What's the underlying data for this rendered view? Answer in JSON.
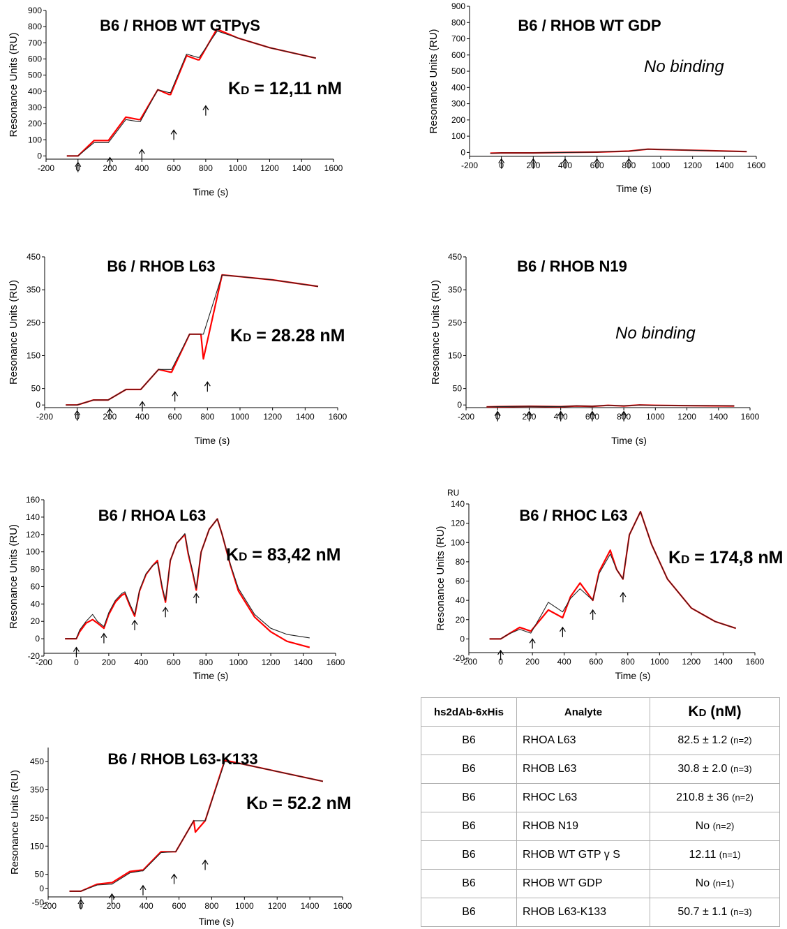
{
  "chart_data": [
    {
      "type": "line",
      "title": "B6 / RHOB WT GTPγS",
      "xlabel": "Time (s)",
      "ylabel": "Resonance  Units (RU)",
      "xlim": [
        -200,
        1600
      ],
      "ylim": [
        -50,
        900
      ],
      "xticks": [
        -200,
        0,
        200,
        400,
        600,
        800,
        1000,
        1200,
        1400,
        1600
      ],
      "yticks": [
        0,
        100,
        200,
        300,
        400,
        500,
        600,
        700,
        800,
        900
      ],
      "annotation": "KD = 12,11 nM",
      "injections": [
        0,
        200,
        400,
        600,
        800
      ],
      "arrow_values": [
        -40,
        -10,
        40,
        160,
        310
      ],
      "series": [
        {
          "color": "#ff0000",
          "x": [
            -70,
            -10,
            0,
            100,
            180,
            190,
            300,
            380,
            390,
            500,
            570,
            580,
            680,
            750,
            760,
            870,
            880,
            1000,
            1200,
            1490
          ],
          "y": [
            0,
            0,
            0,
            95,
            95,
            95,
            240,
            225,
            225,
            410,
            380,
            380,
            620,
            595,
            595,
            785,
            780,
            730,
            670,
            605
          ]
        },
        {
          "color": "#222222",
          "x": [
            -70,
            -10,
            0,
            100,
            180,
            190,
            300,
            380,
            390,
            500,
            570,
            580,
            680,
            750,
            760,
            870,
            880,
            1000,
            1200,
            1490
          ],
          "y": [
            0,
            0,
            0,
            82,
            82,
            82,
            225,
            212,
            212,
            410,
            392,
            392,
            630,
            610,
            610,
            770,
            770,
            730,
            670,
            605
          ]
        }
      ]
    },
    {
      "type": "line",
      "title": "B6 / RHOB WT  GDP",
      "xlabel": "Time (s)",
      "ylabel": "Resonance  Units (RU)",
      "xlim": [
        -200,
        1600
      ],
      "ylim": [
        -50,
        900
      ],
      "xticks": [
        -200,
        0,
        200,
        400,
        600,
        800,
        1000,
        1200,
        1400,
        1600
      ],
      "yticks": [
        0,
        100,
        200,
        300,
        400,
        500,
        600,
        700,
        800,
        900
      ],
      "annotation": "No binding",
      "injections": [
        0,
        200,
        400,
        600,
        800
      ],
      "arrow_values": [
        -40,
        -40,
        -40,
        -40,
        -40
      ],
      "series": [
        {
          "color": "#ff0000",
          "x": [
            -70,
            0,
            200,
            400,
            600,
            800,
            920,
            1000,
            1200,
            1540
          ],
          "y": [
            -5,
            -3,
            -3,
            0,
            2,
            8,
            20,
            18,
            13,
            5
          ]
        },
        {
          "color": "#222222",
          "x": [
            -70,
            0,
            200,
            400,
            600,
            800,
            920,
            1000,
            1200,
            1540
          ],
          "y": [
            -5,
            -3,
            -3,
            0,
            2,
            8,
            20,
            18,
            13,
            5
          ]
        }
      ]
    },
    {
      "type": "line",
      "title": "B6 / RHOB L63",
      "xlabel": "Time (s)",
      "ylabel": "Resonance  Units (RU)",
      "xlim": [
        -200,
        1600
      ],
      "ylim": [
        -25,
        450
      ],
      "xticks": [
        -200,
        0,
        200,
        400,
        600,
        800,
        1000,
        1200,
        1400,
        1600
      ],
      "yticks": [
        0,
        50,
        150,
        250,
        350,
        450
      ],
      "annotation": "KD = 28.28 nM",
      "injections": [
        0,
        200,
        400,
        600,
        800
      ],
      "arrow_values": [
        -18,
        -12,
        10,
        40,
        70
      ],
      "series": [
        {
          "color": "#ff0000",
          "x": [
            -70,
            -10,
            0,
            100,
            180,
            190,
            300,
            380,
            390,
            500,
            570,
            580,
            690,
            760,
            775,
            890,
            1000,
            1200,
            1480
          ],
          "y": [
            0,
            0,
            0,
            15,
            15,
            15,
            47,
            47,
            47,
            108,
            100,
            100,
            215,
            215,
            140,
            395,
            390,
            380,
            360
          ]
        },
        {
          "color": "#222222",
          "x": [
            -70,
            -10,
            0,
            100,
            180,
            190,
            300,
            380,
            390,
            500,
            570,
            580,
            690,
            760,
            775,
            890,
            1000,
            1200,
            1480
          ],
          "y": [
            0,
            0,
            0,
            15,
            15,
            15,
            47,
            47,
            47,
            108,
            108,
            108,
            215,
            215,
            215,
            395,
            390,
            380,
            360
          ]
        }
      ]
    },
    {
      "type": "line",
      "title": "B6 / RHOB N19",
      "xlabel": "Time (s)",
      "ylabel": "Resonance  Units (RU)",
      "xlim": [
        -200,
        1600
      ],
      "ylim": [
        -25,
        450
      ],
      "xticks": [
        -200,
        0,
        200,
        400,
        600,
        800,
        1000,
        1200,
        1400,
        1600
      ],
      "yticks": [
        0,
        50,
        150,
        250,
        350,
        450
      ],
      "annotation": "No binding",
      "injections": [
        0,
        200,
        400,
        600,
        800
      ],
      "arrow_values": [
        -20,
        -20,
        -20,
        -20,
        -20
      ],
      "series": [
        {
          "color": "#ff0000",
          "x": [
            -70,
            0,
            200,
            390,
            400,
            500,
            600,
            700,
            800,
            900,
            1000,
            1200,
            1500
          ],
          "y": [
            -6,
            -5,
            -4,
            -5,
            -5,
            -3,
            -4,
            -1,
            -3,
            0,
            -1,
            -2,
            -3
          ]
        },
        {
          "color": "#222222",
          "x": [
            -70,
            0,
            200,
            390,
            400,
            500,
            600,
            700,
            800,
            900,
            1000,
            1200,
            1500
          ],
          "y": [
            -6,
            -5,
            -4,
            -5,
            -5,
            -3,
            -4,
            -1,
            -3,
            0,
            -1,
            -2,
            -3
          ]
        }
      ]
    },
    {
      "type": "line",
      "title": "B6 / RHOA L63",
      "xlabel": "Time (s)",
      "ylabel": "Resonance  Units (RU)",
      "xlim": [
        -200,
        1600
      ],
      "ylim": [
        -20,
        160
      ],
      "xticks": [
        -200,
        0,
        200,
        400,
        600,
        800,
        1000,
        1200,
        1400,
        1600
      ],
      "yticks": [
        -20,
        0,
        20,
        40,
        60,
        80,
        100,
        120,
        140,
        160
      ],
      "annotation": "KD = 83,42 nM",
      "injections": [
        0,
        170,
        360,
        550,
        740
      ],
      "arrow_values": [
        -10,
        6,
        21,
        36,
        52
      ],
      "series": [
        {
          "color": "#ff0000",
          "x": [
            -70,
            -10,
            0,
            20,
            60,
            100,
            130,
            170,
            200,
            240,
            280,
            300,
            330,
            360,
            390,
            430,
            470,
            500,
            530,
            550,
            580,
            620,
            670,
            690,
            720,
            740,
            770,
            820,
            870,
            900,
            950,
            1000,
            1100,
            1200,
            1300,
            1440
          ],
          "y": [
            0,
            0,
            0,
            8,
            18,
            22,
            18,
            12,
            28,
            42,
            50,
            52,
            38,
            26,
            55,
            74,
            84,
            90,
            58,
            42,
            90,
            110,
            120,
            98,
            74,
            56,
            100,
            126,
            138,
            120,
            85,
            55,
            25,
            8,
            -3,
            -10
          ]
        },
        {
          "color": "#222222",
          "x": [
            -70,
            -10,
            0,
            20,
            60,
            100,
            130,
            170,
            200,
            240,
            280,
            300,
            330,
            360,
            390,
            430,
            470,
            500,
            530,
            550,
            580,
            620,
            670,
            690,
            720,
            740,
            770,
            820,
            870,
            900,
            950,
            1000,
            1100,
            1200,
            1300,
            1440
          ],
          "y": [
            0,
            0,
            0,
            10,
            20,
            28,
            20,
            14,
            30,
            44,
            52,
            54,
            40,
            28,
            56,
            75,
            84,
            88,
            60,
            44,
            90,
            110,
            121,
            100,
            76,
            58,
            100,
            126,
            138,
            120,
            86,
            58,
            28,
            12,
            5,
            1
          ]
        }
      ]
    },
    {
      "type": "line",
      "title": "B6 / RHOC L63",
      "xlabel": "Time (s)",
      "ylabel": "Resonance  Units (RU)",
      "unit_label": "RU",
      "xlim": [
        -200,
        1600
      ],
      "ylim": [
        -20,
        140
      ],
      "xticks": [
        -200,
        0,
        200,
        400,
        600,
        800,
        1000,
        1200,
        1400,
        1600
      ],
      "yticks": [
        -20,
        0,
        20,
        40,
        60,
        80,
        100,
        120,
        140
      ],
      "annotation": "KD = 174,8 nM",
      "injections": [
        0,
        200,
        390,
        580,
        770
      ],
      "arrow_values": [
        -12,
        0,
        12,
        30,
        48
      ],
      "series": [
        {
          "color": "#ff0000",
          "x": [
            -70,
            -10,
            0,
            50,
            120,
            190,
            260,
            300,
            390,
            440,
            500,
            580,
            620,
            690,
            730,
            770,
            810,
            880,
            950,
            1050,
            1200,
            1350,
            1480
          ],
          "y": [
            0,
            0,
            0,
            5,
            12,
            8,
            22,
            30,
            22,
            44,
            58,
            40,
            70,
            92,
            72,
            62,
            108,
            132,
            98,
            62,
            32,
            18,
            11
          ]
        },
        {
          "color": "#222222",
          "x": [
            -70,
            -10,
            0,
            50,
            120,
            190,
            260,
            300,
            390,
            440,
            500,
            580,
            620,
            690,
            730,
            770,
            810,
            880,
            950,
            1050,
            1200,
            1350,
            1480
          ],
          "y": [
            0,
            0,
            0,
            5,
            10,
            6,
            26,
            38,
            28,
            42,
            52,
            40,
            68,
            88,
            72,
            62,
            108,
            132,
            98,
            62,
            32,
            18,
            11
          ]
        }
      ]
    },
    {
      "type": "line",
      "title": "B6 / RHOB L63-K133",
      "xlabel": "Time (s)",
      "ylabel": "Resonance  Units (RU)",
      "xlim": [
        -200,
        1600
      ],
      "ylim": [
        -50,
        500
      ],
      "xticks": [
        -200,
        0,
        200,
        400,
        600,
        800,
        1000,
        1200,
        1400,
        1600
      ],
      "yticks": [
        -50,
        0,
        50,
        150,
        250,
        350,
        450
      ],
      "annotation": "KD = 52.2 nM",
      "injections": [
        0,
        190,
        380,
        570,
        760
      ],
      "arrow_values": [
        -40,
        -20,
        10,
        50,
        100
      ],
      "series": [
        {
          "color": "#ff0000",
          "x": [
            -70,
            -10,
            0,
            100,
            180,
            190,
            300,
            370,
            380,
            490,
            570,
            580,
            690,
            700,
            760,
            880,
            1000,
            1200,
            1480
          ],
          "y": [
            -10,
            -10,
            -10,
            15,
            20,
            20,
            60,
            65,
            65,
            130,
            130,
            130,
            240,
            200,
            240,
            455,
            440,
            415,
            380
          ]
        },
        {
          "color": "#222222",
          "x": [
            -70,
            -10,
            0,
            100,
            180,
            190,
            300,
            370,
            380,
            490,
            570,
            580,
            690,
            700,
            760,
            880,
            1000,
            1200,
            1480
          ],
          "y": [
            -10,
            -10,
            -10,
            12,
            15,
            15,
            55,
            62,
            62,
            127,
            130,
            130,
            240,
            240,
            240,
            450,
            440,
            415,
            380
          ]
        }
      ]
    },
    {
      "type": "table",
      "columns": [
        "hs2dAb-6xHis",
        "Analyte",
        "KD  (nM)"
      ],
      "rows": [
        [
          "B6",
          "RHOA L63",
          "82.5 ± 1.2",
          "(n=2)"
        ],
        [
          "B6",
          "RHOB L63",
          "30.8 ± 2.0",
          "(n=3)"
        ],
        [
          "B6",
          "RHOC L63",
          "210.8 ± 36",
          "(n=2)"
        ],
        [
          "B6",
          "RHOB N19",
          "No",
          "(n=2)"
        ],
        [
          "B6",
          "RHOB WT   GTP γ S",
          "12.11",
          "(n=1)"
        ],
        [
          "B6",
          "RHOB WT    GDP",
          "No",
          "(n=1)"
        ],
        [
          "B6",
          "RHOB L63-K133",
          "50.7 ± 1.1",
          "(n=3)"
        ]
      ]
    }
  ]
}
